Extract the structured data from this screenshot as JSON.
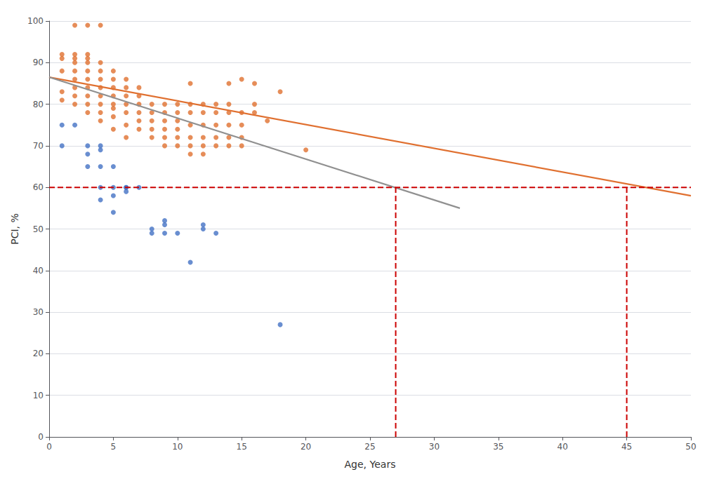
{
  "chart_data": {
    "type": "scatter",
    "xlabel": "Age, Years",
    "ylabel": "PCI, %",
    "xlim": [
      0,
      50
    ],
    "ylim": [
      0,
      100
    ],
    "xticks": [
      0,
      5,
      10,
      15,
      20,
      25,
      30,
      35,
      40,
      45,
      50
    ],
    "yticks": [
      0,
      10,
      20,
      30,
      40,
      50,
      60,
      70,
      80,
      90,
      100
    ],
    "grid": true,
    "series": [
      {
        "type": "scatter",
        "marker": "circle",
        "color": "#e07030",
        "x": [
          1,
          1,
          1,
          1,
          1,
          2,
          2,
          2,
          2,
          2,
          2,
          2,
          2,
          2,
          3,
          3,
          3,
          3,
          3,
          3,
          3,
          3,
          3,
          3,
          4,
          4,
          4,
          4,
          4,
          4,
          4,
          4,
          4,
          5,
          5,
          5,
          5,
          5,
          5,
          5,
          5,
          6,
          6,
          6,
          6,
          6,
          6,
          6,
          7,
          7,
          7,
          7,
          7,
          7,
          8,
          8,
          8,
          8,
          8,
          9,
          9,
          9,
          9,
          9,
          9,
          10,
          10,
          10,
          10,
          10,
          10,
          11,
          11,
          11,
          11,
          11,
          11,
          11,
          12,
          12,
          12,
          12,
          12,
          12,
          13,
          13,
          13,
          13,
          13,
          14,
          14,
          14,
          14,
          14,
          14,
          15,
          15,
          15,
          15,
          15,
          16,
          16,
          16,
          17,
          18,
          20
        ],
        "values": [
          81,
          83,
          88,
          91,
          92,
          80,
          82,
          84,
          86,
          88,
          90,
          91,
          92,
          99,
          78,
          80,
          82,
          84,
          86,
          88,
          90,
          91,
          92,
          99,
          76,
          78,
          80,
          82,
          84,
          86,
          88,
          90,
          99,
          74,
          77,
          79,
          80,
          82,
          84,
          86,
          88,
          72,
          75,
          78,
          80,
          82,
          84,
          86,
          74,
          76,
          78,
          80,
          82,
          84,
          72,
          74,
          76,
          78,
          80,
          70,
          72,
          74,
          76,
          78,
          80,
          70,
          72,
          74,
          76,
          78,
          80,
          68,
          70,
          72,
          75,
          78,
          80,
          85,
          68,
          70,
          72,
          75,
          78,
          80,
          70,
          72,
          75,
          78,
          80,
          70,
          72,
          75,
          78,
          80,
          85,
          70,
          72,
          75,
          78,
          86,
          78,
          80,
          85,
          76,
          83,
          69
        ]
      },
      {
        "type": "scatter",
        "marker": "circle",
        "color": "#4472c4",
        "x": [
          1,
          1,
          2,
          3,
          3,
          3,
          4,
          4,
          4,
          4,
          4,
          5,
          5,
          5,
          5,
          6,
          6,
          6,
          7,
          8,
          8,
          9,
          9,
          9,
          10,
          11,
          12,
          12,
          13,
          18
        ],
        "values": [
          70,
          75,
          75,
          65,
          68,
          70,
          57,
          60,
          65,
          69,
          70,
          54,
          58,
          60,
          65,
          59,
          60,
          60,
          60,
          49,
          50,
          49,
          51,
          52,
          49,
          42,
          50,
          51,
          49,
          27
        ]
      },
      {
        "type": "line",
        "line_style": "solid",
        "color": "#e07030",
        "x": [
          0,
          50
        ],
        "values": [
          86.5,
          58.0
        ]
      },
      {
        "type": "line",
        "line_style": "solid",
        "color": "#909090",
        "x": [
          0,
          32
        ],
        "values": [
          86.5,
          55.0
        ]
      },
      {
        "type": "line",
        "line_style": "dashed",
        "color": "#cc0000",
        "x": [
          0,
          50
        ],
        "values": [
          60,
          60
        ]
      },
      {
        "type": "line",
        "line_style": "dashed",
        "color": "#cc0000",
        "x": [
          27,
          27
        ],
        "values": [
          0,
          60
        ]
      },
      {
        "type": "line",
        "line_style": "dashed",
        "color": "#cc0000",
        "x": [
          45,
          45
        ],
        "values": [
          0,
          60
        ]
      }
    ]
  }
}
